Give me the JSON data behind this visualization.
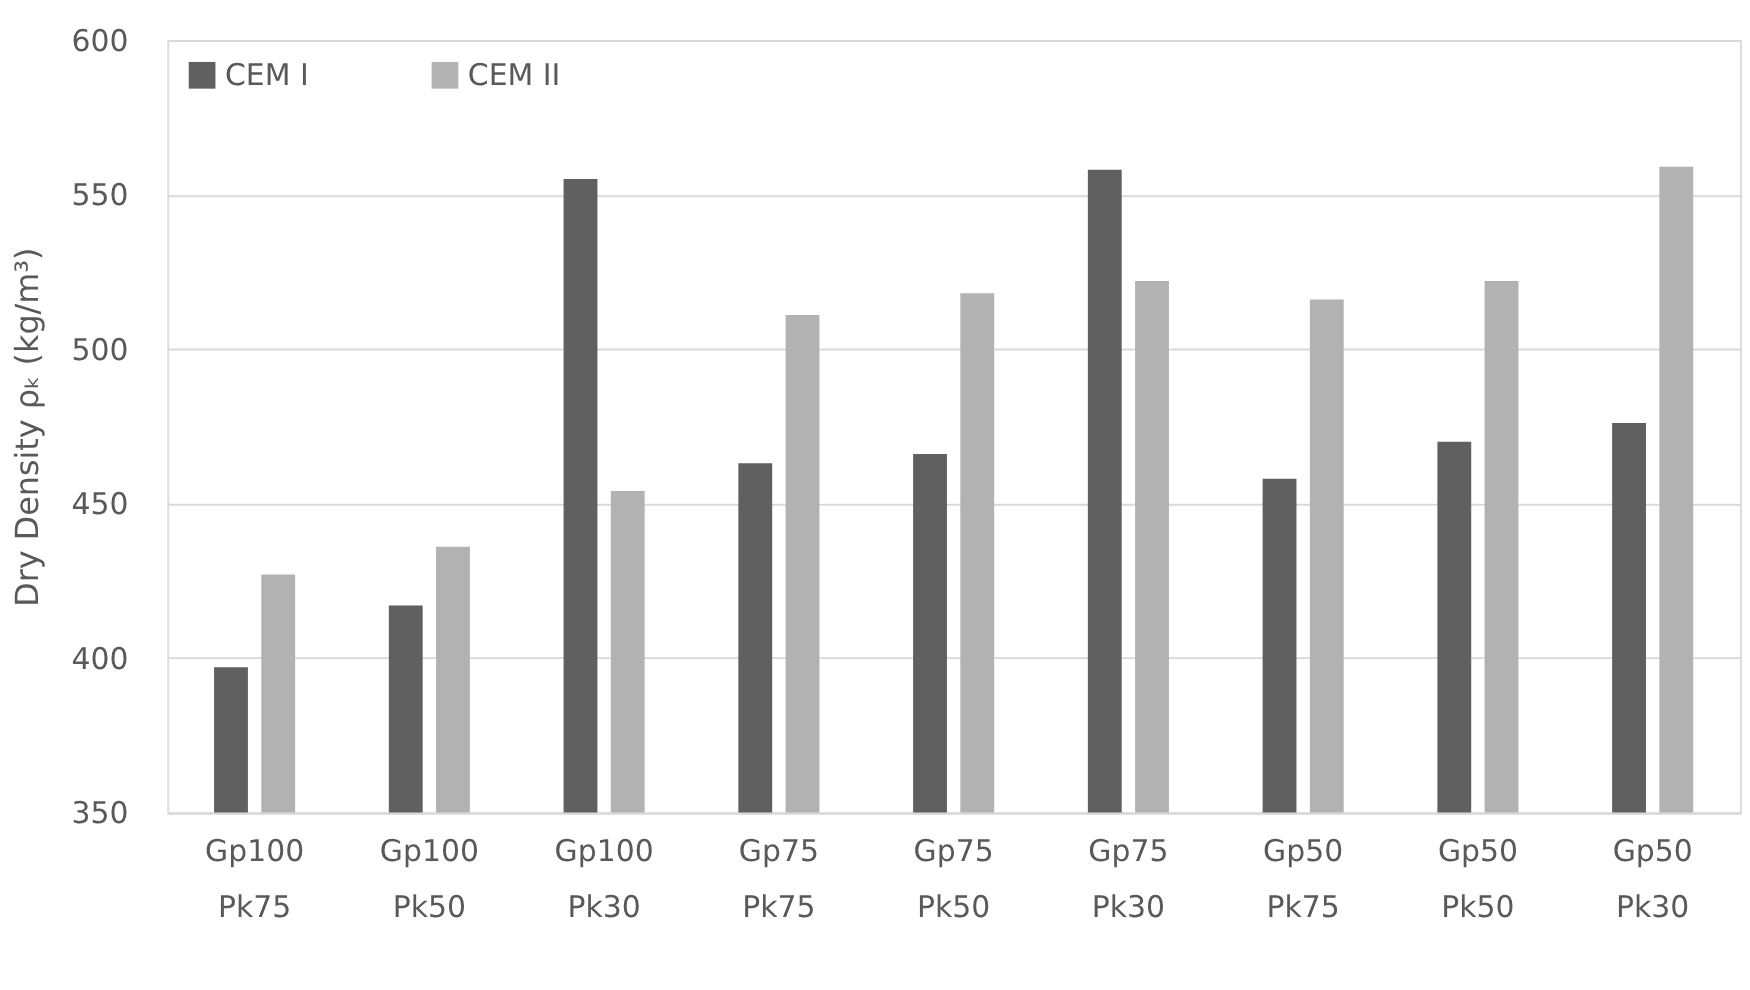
{
  "chart_data": {
    "type": "bar",
    "ylabel": "Dry Density ρₖ (kg/m³)",
    "categories": [
      "Gp100\nPk75",
      "Gp100\nPk50",
      "Gp100\nPk30",
      "Gp75\nPk75",
      "Gp75\nPk50",
      "Gp75\nPk30",
      "Gp50\nPk75",
      "Gp50\nPk50",
      "Gp50\nPk30"
    ],
    "series": [
      {
        "name": "CEM I",
        "color": "#606060",
        "values": [
          397,
          417,
          555,
          463,
          466,
          558,
          458,
          470,
          476
        ]
      },
      {
        "name": "CEM II",
        "color": "#b2b2b2",
        "values": [
          427,
          436,
          454,
          511,
          518,
          522,
          516,
          522,
          559
        ]
      }
    ],
    "ylim": [
      350,
      600
    ],
    "yticks": [
      350,
      400,
      450,
      500,
      550,
      600
    ],
    "grid": "y",
    "legend": "top left"
  }
}
